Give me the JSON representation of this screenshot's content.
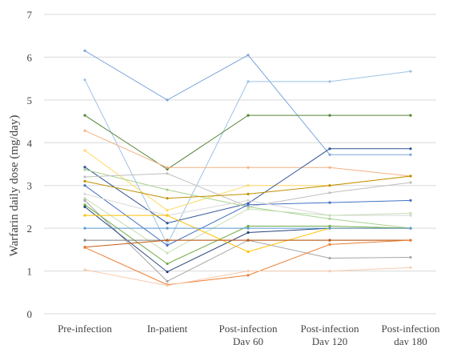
{
  "chart_data": {
    "type": "line",
    "title": "",
    "xlabel": "",
    "ylabel": "Warfarin daily dose (mg/day)",
    "ylim": [
      0,
      7
    ],
    "yticks": [
      0,
      1,
      2,
      3,
      4,
      5,
      6,
      7
    ],
    "grid": "horizontal",
    "legend": "none",
    "categories": [
      [
        "Pre-infection"
      ],
      [
        "In-patient"
      ],
      [
        "Post-infection",
        "Day 60"
      ],
      [
        "Post-infection",
        "Day 120"
      ],
      [
        "Post-infection",
        "day 180"
      ]
    ],
    "series": [
      {
        "color": "#7aa6dc",
        "values": [
          6.15,
          5.0,
          6.05,
          3.72,
          3.72
        ]
      },
      {
        "color": "#9dc3e6",
        "values": [
          5.47,
          1.62,
          5.43,
          5.43,
          5.67
        ]
      },
      {
        "color": "#548235",
        "values": [
          4.64,
          3.38,
          4.64,
          4.64,
          4.64
        ]
      },
      {
        "color": "#f4b183",
        "values": [
          4.28,
          3.42,
          3.42,
          3.42,
          3.22
        ]
      },
      {
        "color": "#ffd966",
        "values": [
          3.82,
          2.42,
          3.0,
          3.0,
          3.22
        ]
      },
      {
        "color": "#2f5597",
        "values": [
          3.43,
          2.12,
          2.58,
          3.86,
          3.86
        ]
      },
      {
        "color": "#a9d18e",
        "values": [
          3.37,
          2.9,
          2.5,
          2.22,
          2.0
        ]
      },
      {
        "color": "#bfbfbf",
        "values": [
          3.2,
          3.28,
          2.5,
          2.83,
          3.07
        ]
      },
      {
        "color": "#bf9000",
        "values": [
          3.1,
          2.7,
          2.8,
          3.0,
          3.22
        ]
      },
      {
        "color": "#4472c4",
        "values": [
          3.0,
          1.6,
          2.55,
          2.6,
          2.65
        ]
      },
      {
        "color": "#d9d9d9",
        "values": [
          2.8,
          2.3,
          2.65,
          2.3,
          2.3
        ]
      },
      {
        "color": "#c5e0b4",
        "values": [
          2.7,
          1.42,
          2.45,
          2.3,
          2.35
        ]
      },
      {
        "color": "#a6a6a6",
        "values": [
          2.65,
          0.76,
          1.72,
          1.3,
          1.32
        ]
      },
      {
        "color": "#70ad47",
        "values": [
          2.55,
          1.17,
          2.05,
          2.05,
          2.0
        ]
      },
      {
        "color": "#264478",
        "values": [
          2.5,
          0.98,
          1.9,
          2.0,
          2.0
        ]
      },
      {
        "color": "#ffc000",
        "values": [
          2.3,
          2.3,
          1.45,
          2.0,
          2.0
        ]
      },
      {
        "color": "#5b9bd5",
        "values": [
          2.0,
          2.0,
          2.0,
          2.0,
          2.0
        ]
      },
      {
        "color": "#7f7f7f",
        "values": [
          1.72,
          1.72,
          1.72,
          1.72,
          1.72
        ]
      },
      {
        "color": "#c55a11",
        "values": [
          1.56,
          1.72,
          1.72,
          1.72,
          1.72
        ]
      },
      {
        "color": "#ed7d31",
        "values": [
          1.55,
          0.68,
          0.9,
          1.62,
          1.72
        ]
      },
      {
        "color": "#f8cbad",
        "values": [
          1.03,
          0.66,
          1.0,
          1.0,
          1.08
        ]
      }
    ]
  }
}
